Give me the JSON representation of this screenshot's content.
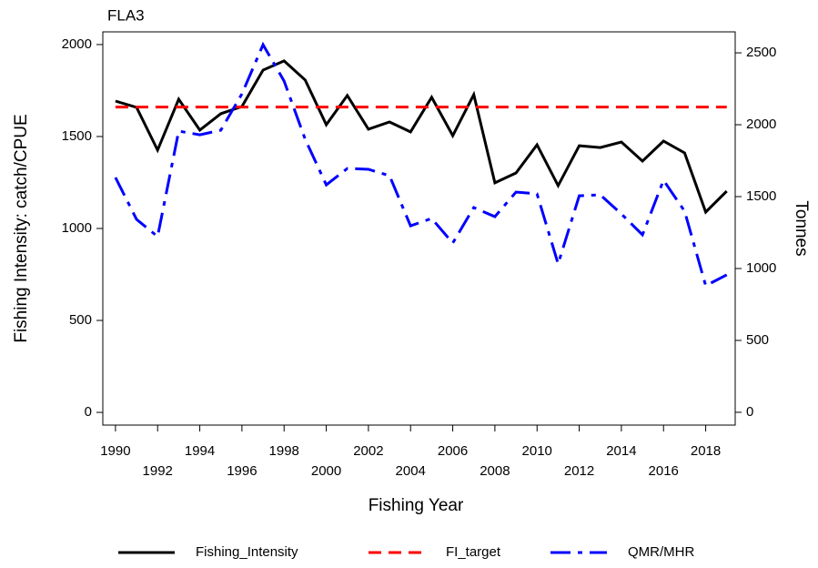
{
  "chart_data": {
    "type": "line",
    "title": "FLA3",
    "x_label": "Fishing Year",
    "y_label": "Fishing Intensity: catch/CPUE",
    "y2_label": "Tonnes",
    "x": [
      1990,
      1991,
      1992,
      1993,
      1994,
      1995,
      1996,
      1997,
      1998,
      1999,
      2000,
      2001,
      2002,
      2003,
      2004,
      2005,
      2006,
      2007,
      2008,
      2009,
      2010,
      2011,
      2012,
      2013,
      2014,
      2015,
      2016,
      2017,
      2018,
      2019
    ],
    "series": [
      {
        "name": "Fishing_Intensity",
        "color": "#000000",
        "style": "solid",
        "axis": "y",
        "values": [
          1693,
          1658,
          1426,
          1703,
          1535,
          1624,
          1663,
          1861,
          1911,
          1807,
          1564,
          1723,
          1540,
          1579,
          1525,
          1713,
          1505,
          1728,
          1248,
          1302,
          1455,
          1233,
          1450,
          1440,
          1470,
          1366,
          1475,
          1411,
          1089,
          1203
        ]
      },
      {
        "name": "FI_target",
        "color": "#ff0000",
        "style": "dashed",
        "axis": "y",
        "values": [
          1660,
          1660,
          1660,
          1660,
          1660,
          1660,
          1660,
          1660,
          1660,
          1660,
          1660,
          1660,
          1660,
          1660,
          1660,
          1660,
          1660,
          1660,
          1660,
          1660,
          1660,
          1660,
          1660,
          1660,
          1660,
          1660,
          1660,
          1660,
          1660,
          1660
        ]
      },
      {
        "name": "QMR/MHR",
        "color": "#0000ff",
        "style": "dashdot",
        "axis": "y2",
        "values": [
          1633,
          1342,
          1222,
          1956,
          1930,
          1962,
          2215,
          2557,
          2304,
          1899,
          1582,
          1696,
          1690,
          1646,
          1297,
          1348,
          1177,
          1424,
          1361,
          1532,
          1519,
          1032,
          1506,
          1513,
          1380,
          1234,
          1614,
          1399,
          880,
          956
        ]
      }
    ],
    "xlim": [
      1989.4,
      2019.4
    ],
    "xticks": [
      1990,
      1992,
      1994,
      1996,
      1998,
      2000,
      2002,
      2004,
      2006,
      2008,
      2010,
      2012,
      2014,
      2016,
      2018
    ],
    "ylim": [
      -69,
      2069
    ],
    "yticks": [
      0,
      500,
      1000,
      1500,
      2000
    ],
    "y2lim": [
      -89,
      2646
    ],
    "y2ticks": [
      0,
      500,
      1000,
      1500,
      2000,
      2500
    ],
    "legend": "bottom"
  }
}
